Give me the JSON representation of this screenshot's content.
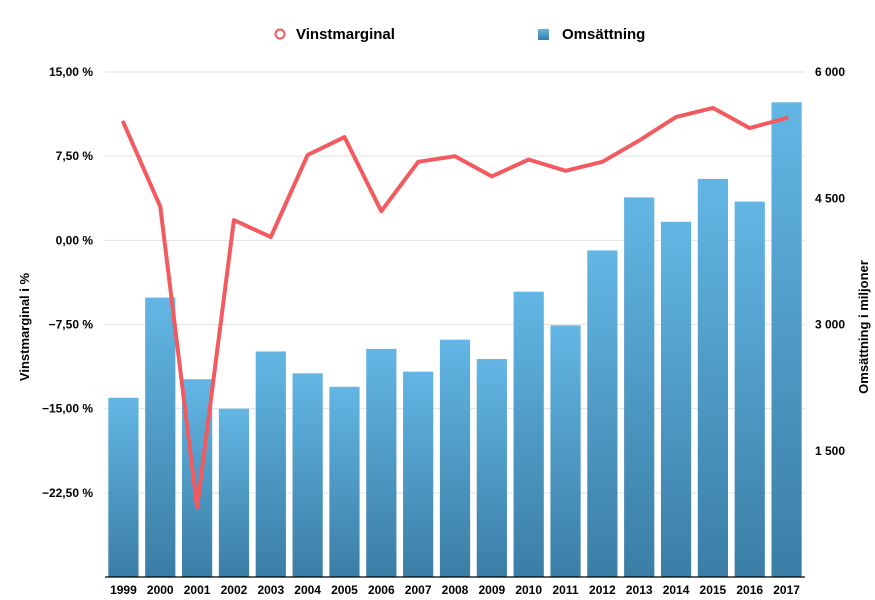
{
  "chart_data": {
    "type": "bar+line",
    "categories": [
      "1999",
      "2000",
      "2001",
      "2002",
      "2003",
      "2004",
      "2005",
      "2006",
      "2007",
      "2008",
      "2009",
      "2010",
      "2011",
      "2012",
      "2013",
      "2014",
      "2015",
      "2016",
      "2017"
    ],
    "series": [
      {
        "name": "Omsättning",
        "type": "bar",
        "axis": "right",
        "color": "#4a9cc9",
        "values": [
          2130,
          3320,
          2350,
          2000,
          2680,
          2420,
          2260,
          2710,
          2440,
          2820,
          2590,
          3390,
          2990,
          3880,
          4510,
          4220,
          4730,
          4460,
          5640
        ]
      },
      {
        "name": "Vinstmarginal",
        "type": "line",
        "axis": "left",
        "color": "#f35a5f",
        "values": [
          10.5,
          3.0,
          -23.8,
          1.8,
          0.3,
          7.6,
          9.2,
          2.6,
          7.0,
          7.5,
          5.7,
          7.2,
          6.2,
          7.0,
          8.9,
          11.0,
          11.8,
          10.0,
          10.9
        ]
      }
    ],
    "left_axis": {
      "title": "Vinstmarginal i %",
      "min": -30,
      "max": 15,
      "ticks": [
        15,
        7.5,
        0,
        -7.5,
        -15,
        -22.5
      ],
      "tick_labels": [
        "15,00 %",
        "7,50 %",
        "0,00 %",
        "−7,50 %",
        "−15,00 %",
        "−22,50 %"
      ]
    },
    "right_axis": {
      "title": "Omsättning i miljoner",
      "min": 0,
      "max": 6000,
      "ticks": [
        6000,
        4500,
        3000,
        1500
      ],
      "tick_labels": [
        "6 000",
        "4 500",
        "3 000",
        "1 500"
      ]
    },
    "legend": {
      "position": "top-center"
    },
    "grid": true
  }
}
